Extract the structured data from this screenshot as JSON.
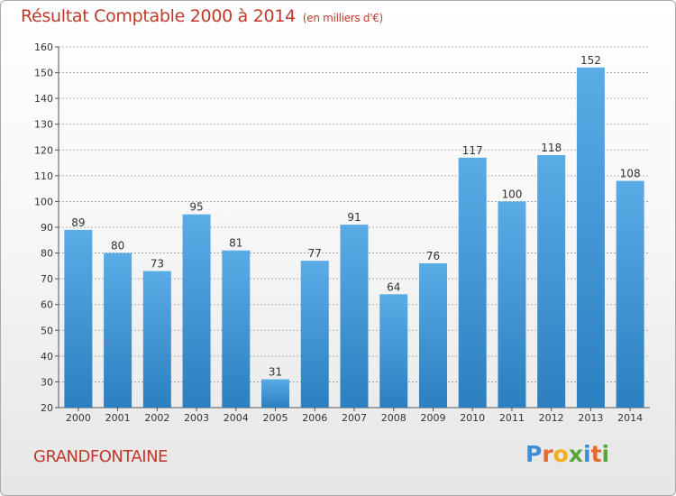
{
  "title": "Résultat Comptable 2000 à 2014",
  "subtitle": "(en milliers d'€)",
  "commune": "GRANDFONTAINE",
  "logo": {
    "text": "Proxiti",
    "letters": [
      {
        "char": "P",
        "color": "#3a8fd6"
      },
      {
        "char": "r",
        "color": "#e8692e"
      },
      {
        "char": "o",
        "color": "#f3b21b"
      },
      {
        "char": "x",
        "color": "#5aa43a"
      },
      {
        "char": "i",
        "color": "#3a8fd6"
      },
      {
        "char": "t",
        "color": "#e8692e"
      },
      {
        "char": "i",
        "color": "#5aa43a"
      }
    ]
  },
  "colors": {
    "accent": "#c0392b",
    "bar_top": "#5aace6",
    "bar_bottom": "#2c7fc0",
    "grid": "#9a9a9a"
  },
  "chart_data": {
    "type": "bar",
    "title": "Résultat Comptable 2000 à 2014",
    "xlabel": "",
    "ylabel": "",
    "categories": [
      "2000",
      "2001",
      "2002",
      "2003",
      "2004",
      "2005",
      "2006",
      "2007",
      "2008",
      "2009",
      "2010",
      "2011",
      "2012",
      "2013",
      "2014"
    ],
    "values": [
      89,
      80,
      73,
      95,
      81,
      31,
      77,
      91,
      64,
      76,
      117,
      100,
      118,
      152,
      108
    ],
    "value_labels": [
      "89",
      "80",
      "73",
      "95",
      "81",
      "31",
      "77",
      "91",
      "64",
      "76",
      "117",
      "100",
      "118",
      "152",
      "108"
    ],
    "ylim": [
      20,
      160
    ],
    "yticks": [
      20,
      30,
      40,
      50,
      60,
      70,
      80,
      90,
      100,
      110,
      120,
      130,
      140,
      150,
      160
    ],
    "ytick_labels": [
      "20",
      "30",
      "40",
      "50",
      "60",
      "70",
      "80",
      "90",
      "100",
      "110",
      "120",
      "130",
      "140",
      "150",
      "160"
    ],
    "grid": true
  }
}
